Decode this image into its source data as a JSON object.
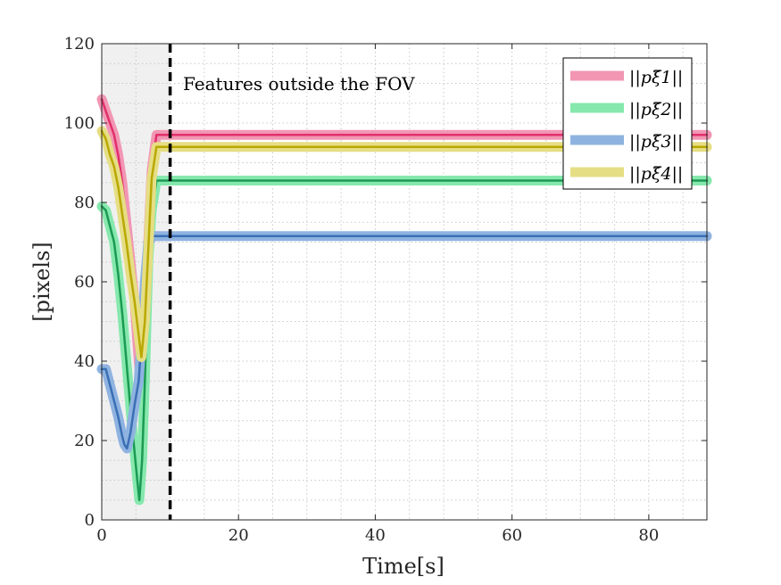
{
  "chart_data": {
    "type": "line",
    "xlabel": "Time[s]",
    "ylabel": "[pixels]",
    "xlim": [
      0,
      88.5
    ],
    "ylim": [
      0,
      120
    ],
    "xticks": [
      0,
      20,
      40,
      60,
      80
    ],
    "yticks": [
      0,
      20,
      40,
      60,
      80,
      100,
      120
    ],
    "grid": "dotted",
    "legend_position": "top-right",
    "shaded_region": [
      0,
      10
    ],
    "vertical_line_x": 10,
    "annotation": "Features outside the FOV",
    "series": [
      {
        "name": "||pξ̃1||",
        "color": "#e0306a",
        "halo_color": "#f296b4",
        "x": [
          0,
          0.6,
          1.2,
          1.8,
          2.4,
          3.0,
          3.6,
          4.2,
          4.8,
          5.4,
          5.8,
          6.3,
          6.8,
          7.3,
          8.0,
          10,
          88.5
        ],
        "values": [
          106,
          103,
          100,
          97,
          92,
          85,
          75,
          65,
          55,
          40,
          33,
          45,
          70,
          88,
          97,
          97,
          97
        ]
      },
      {
        "name": "||pξ̃2||",
        "color": "#1a9a52",
        "halo_color": "#86e8ad",
        "x": [
          0,
          0.6,
          1.2,
          1.8,
          2.4,
          3.0,
          3.6,
          4.2,
          4.8,
          5.2,
          5.5,
          5.9,
          6.3,
          6.8,
          7.3,
          8.0,
          10,
          88.5
        ],
        "values": [
          79,
          78,
          74,
          70,
          62,
          52,
          40,
          28,
          17,
          10,
          5,
          15,
          35,
          65,
          78,
          85.5,
          85.5,
          85.5
        ]
      },
      {
        "name": "||pξ̃3||",
        "color": "#3a6fb5",
        "halo_color": "#8fb3e0",
        "x": [
          0,
          0.6,
          1.2,
          1.8,
          2.4,
          3.0,
          3.3,
          3.7,
          4.2,
          4.8,
          5.4,
          5.8,
          6.3,
          6.8,
          7.5,
          10,
          88.5
        ],
        "values": [
          38,
          38,
          34,
          30,
          26,
          21,
          19,
          18,
          22,
          29,
          35,
          45,
          60,
          70,
          71.5,
          71.5,
          71.5
        ]
      },
      {
        "name": "||pξ̃4||",
        "color": "#b9a800",
        "halo_color": "#e6de84",
        "x": [
          0,
          0.6,
          1.2,
          1.8,
          2.4,
          3.0,
          3.6,
          4.2,
          4.8,
          5.3,
          5.8,
          6.3,
          6.8,
          7.3,
          8.0,
          10,
          88.5
        ],
        "values": [
          98,
          96,
          92,
          89,
          84,
          77,
          70,
          62,
          55,
          48,
          41,
          50,
          68,
          86,
          94,
          94,
          94
        ]
      }
    ]
  }
}
